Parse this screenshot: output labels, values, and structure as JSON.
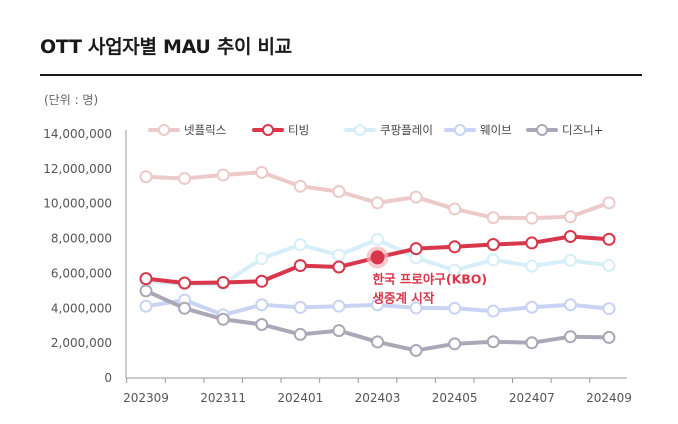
{
  "title": "OTT 사업자별 MAU 추이 비교",
  "unit_label": "(단위 : 명)",
  "chart_data": {
    "type": "line",
    "title": "OTT 사업자별 MAU 추이 비교",
    "xlabel": "",
    "ylabel": "",
    "ylim": [
      0,
      14000000
    ],
    "yticks": [
      "0",
      "2,000,000",
      "4,000,000",
      "6,000,000",
      "8,000,000",
      "10,000,000",
      "12,000,000",
      "14,000,000"
    ],
    "ytick_values": [
      0,
      2000000,
      4000000,
      6000000,
      8000000,
      10000000,
      12000000,
      14000000
    ],
    "x": [
      "202309",
      "202310",
      "202311",
      "202312",
      "202401",
      "202402",
      "202403",
      "202404",
      "202405",
      "202406",
      "202407",
      "202408",
      "202409"
    ],
    "xtick_labels": [
      "202309",
      "202311",
      "202401",
      "202403",
      "202405",
      "202407",
      "202409"
    ],
    "legend_position": "top",
    "grid": false,
    "series": [
      {
        "name": "넷플릭스",
        "color": "#eccaca",
        "values": [
          11550000,
          11450000,
          11650000,
          11800000,
          11000000,
          10700000,
          10050000,
          10380000,
          9700000,
          9200000,
          9170000,
          9250000,
          10050000
        ]
      },
      {
        "name": "티빙",
        "color": "#d8364a",
        "values": [
          5700000,
          5450000,
          5480000,
          5550000,
          6450000,
          6370000,
          6920000,
          7420000,
          7530000,
          7660000,
          7750000,
          8120000,
          7960000
        ]
      },
      {
        "name": "쿠팡플레이",
        "color": "#d6eef8",
        "values": [
          5570000,
          5400000,
          5400000,
          6850000,
          7650000,
          7050000,
          7950000,
          6900000,
          6180000,
          6780000,
          6420000,
          6750000,
          6460000
        ]
      },
      {
        "name": "웨이브",
        "color": "#c9d3f3",
        "values": [
          4120000,
          4470000,
          3620000,
          4200000,
          4050000,
          4120000,
          4200000,
          4020000,
          4000000,
          3840000,
          4060000,
          4200000,
          3980000
        ]
      },
      {
        "name": "디즈니+",
        "color": "#aca7b6",
        "values": [
          5000000,
          4000000,
          3370000,
          3070000,
          2500000,
          2720000,
          2070000,
          1580000,
          1960000,
          2080000,
          2020000,
          2370000,
          2330000
        ]
      }
    ],
    "annotation": {
      "lines": [
        "한국 프로야구(KBO)",
        "생중계 시작"
      ],
      "series": "티빙",
      "x": "202403"
    }
  }
}
